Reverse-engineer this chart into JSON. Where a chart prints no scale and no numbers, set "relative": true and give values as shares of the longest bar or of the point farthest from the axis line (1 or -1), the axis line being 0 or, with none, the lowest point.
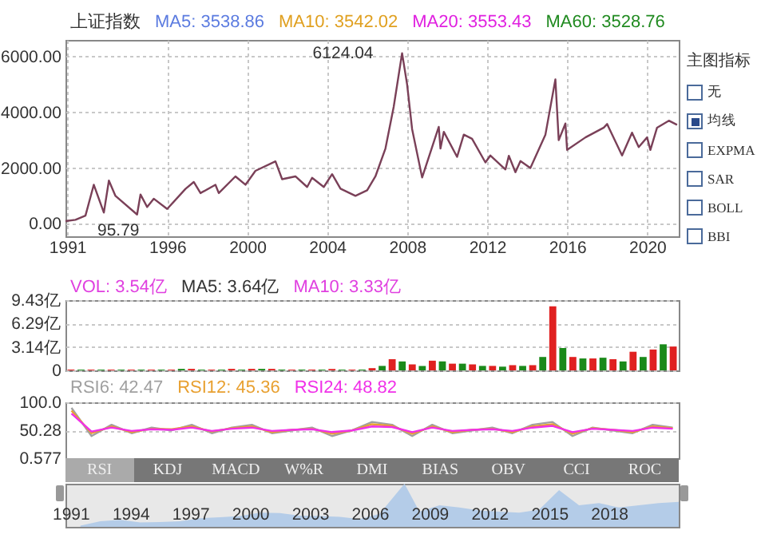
{
  "chart_data": [
    {
      "type": "line",
      "title": "上证指数",
      "annotations": [
        "MA5: 3538.86",
        "MA10: 3542.02",
        "MA20: 3553.43",
        "MA60: 3528.76",
        {
          "text": "6124.04",
          "x": "2007-10",
          "y": 6124.04
        },
        {
          "text": "95.79",
          "x": "1990-12",
          "y": 95.79
        }
      ],
      "x": [
        "1990-12",
        "1991-06",
        "1991-12",
        "1992-05",
        "1992-11",
        "1993-02",
        "1993-06",
        "1994-07",
        "1994-09",
        "1995-01",
        "1995-05",
        "1996-01",
        "1996-12",
        "1997-05",
        "1997-09",
        "1998-06",
        "1998-08",
        "1999-06",
        "1999-12",
        "2000-06",
        "2001-06",
        "2001-10",
        "2002-06",
        "2003-01",
        "2003-04",
        "2003-11",
        "2004-04",
        "2004-09",
        "2005-06",
        "2006-01",
        "2006-06",
        "2006-12",
        "2007-05",
        "2007-10",
        "2008-01",
        "2008-04",
        "2008-10",
        "2009-08",
        "2009-09",
        "2009-11",
        "2010-07",
        "2010-11",
        "2011-04",
        "2011-12",
        "2012-03",
        "2012-12",
        "2013-02",
        "2013-06",
        "2013-09",
        "2014-03",
        "2014-12",
        "2015-06",
        "2015-08",
        "2015-12",
        "2016-01",
        "2016-12",
        "2017-11",
        "2018-01",
        "2018-10",
        "2019-04",
        "2019-08",
        "2020-01",
        "2020-03",
        "2020-07",
        "2021-02",
        "2021-07"
      ],
      "series": [
        {
          "color": "#7a4058",
          "values": [
            95.79,
            140,
            290,
            1400,
            400,
            1550,
            1000,
            330,
            1050,
            600,
            900,
            530,
            1250,
            1500,
            1100,
            1400,
            1100,
            1700,
            1400,
            1900,
            2240,
            1600,
            1700,
            1320,
            1650,
            1320,
            1780,
            1260,
            1000,
            1200,
            1700,
            2700,
            4200,
            6124.04,
            5000,
            3400,
            1660,
            3480,
            2700,
            3300,
            2400,
            3200,
            3050,
            2200,
            2450,
            1950,
            2440,
            1850,
            2250,
            2000,
            3200,
            5180,
            3000,
            3600,
            2650,
            3100,
            3450,
            3580,
            2450,
            3270,
            2750,
            3100,
            2650,
            3450,
            3700,
            3550
          ]
        }
      ],
      "xlim": [
        "1990-12",
        "2021-08"
      ],
      "xticks": [
        "1991",
        "1996",
        "2000",
        "2004",
        "2008",
        "2012",
        "2016",
        "2020"
      ],
      "ylim": [
        -450,
        6600
      ],
      "yticks": [
        {
          "value": 0,
          "label": "0.00"
        },
        {
          "value": 2000,
          "label": "2000.00"
        },
        {
          "value": 4000,
          "label": "4000.00"
        },
        {
          "value": 6000,
          "label": "6000.00"
        }
      ],
      "grid": true
    },
    {
      "type": "bar",
      "annotations": [
        "VOL: 3.54亿",
        "MA5: 3.64亿",
        "MA10: 3.33亿"
      ],
      "categories": [
        null,
        null,
        null,
        null,
        null,
        null,
        null,
        null,
        null,
        null,
        null,
        null,
        null,
        null,
        null,
        null,
        null,
        null,
        null,
        null,
        null,
        null,
        null,
        null,
        null,
        null,
        null,
        null,
        null,
        null,
        null,
        null,
        null,
        null,
        null,
        null,
        null,
        null,
        null,
        null,
        null,
        null,
        null,
        null,
        null,
        null,
        null,
        null,
        null,
        null,
        null,
        null,
        null,
        null,
        null,
        null,
        null,
        null,
        null,
        null,
        null
      ],
      "values": [
        0.1,
        0.1,
        0.1,
        0.1,
        0.1,
        0.1,
        0.1,
        0.1,
        0.1,
        0.1,
        0.1,
        0.2,
        0.2,
        0.1,
        0.1,
        0.1,
        0.2,
        0.1,
        0.2,
        0.2,
        0.2,
        0.1,
        0.1,
        0.1,
        0.1,
        0.1,
        0.2,
        0.1,
        0.1,
        0.1,
        0.3,
        0.6,
        1.5,
        1.2,
        0.8,
        0.6,
        1.3,
        1.2,
        0.9,
        0.9,
        0.8,
        0.6,
        0.6,
        0.5,
        0.7,
        0.6,
        0.7,
        1.8,
        8.6,
        3.0,
        1.8,
        1.6,
        1.6,
        1.7,
        1.5,
        1.2,
        2.5,
        1.8,
        2.8,
        3.5,
        3.2
      ],
      "colors": [
        "#e02020",
        "#1a8a1a",
        "#e02020",
        "#1a8a1a",
        "#e02020",
        "#1a8a1a",
        "#e02020",
        "#1a8a1a",
        "#e02020",
        "#1a8a1a",
        "#e02020",
        "#1a8a1a",
        "#e02020",
        "#1a8a1a",
        "#e02020",
        "#1a8a1a",
        "#e02020",
        "#1a8a1a",
        "#e02020",
        "#1a8a1a",
        "#e02020",
        "#1a8a1a",
        "#e02020",
        "#1a8a1a",
        "#e02020",
        "#1a8a1a",
        "#e02020",
        "#1a8a1a",
        "#e02020",
        "#1a8a1a",
        "#e02020",
        "#1a8a1a",
        "#e02020",
        "#1a8a1a",
        "#e02020",
        "#1a8a1a",
        "#e02020",
        "#1a8a1a",
        "#e02020",
        "#1a8a1a",
        "#e02020",
        "#1a8a1a",
        "#e02020",
        "#1a8a1a",
        "#e02020",
        "#1a8a1a",
        "#e02020",
        "#1a8a1a",
        "#e02020",
        "#1a8a1a",
        "#e02020",
        "#1a8a1a",
        "#e02020",
        "#1a8a1a",
        "#e02020",
        "#1a8a1a",
        "#e02020",
        "#1a8a1a",
        "#e02020",
        "#1a8a1a",
        "#e02020"
      ],
      "ylim": [
        0,
        9.43
      ],
      "yticks": [
        {
          "value": 0,
          "label": "0"
        },
        {
          "value": 3.14,
          "label": "3.14亿"
        },
        {
          "value": 6.29,
          "label": "6.29亿"
        },
        {
          "value": 9.43,
          "label": "9.43亿"
        }
      ],
      "grid": "y",
      "tick_labels": "y"
    },
    {
      "type": "line",
      "categories": [
        null,
        null,
        null,
        null,
        null,
        null,
        null,
        null,
        null,
        null,
        null,
        null,
        null,
        null,
        null,
        null,
        null,
        null,
        null,
        null,
        null,
        null,
        null,
        null,
        null,
        null,
        null,
        null,
        null,
        null,
        null
      ],
      "series": [
        {
          "name": "RSI6: 42.47",
          "color": "#a0a0a0",
          "values": [
            90,
            40,
            60,
            45,
            55,
            50,
            60,
            45,
            55,
            60,
            45,
            50,
            55,
            40,
            50,
            65,
            60,
            40,
            60,
            45,
            50,
            55,
            45,
            60,
            65,
            40,
            55,
            50,
            45,
            60,
            55
          ]
        },
        {
          "name": "RSI12: 45.36",
          "color": "#e8a030",
          "values": [
            85,
            45,
            57,
            47,
            53,
            52,
            57,
            48,
            54,
            57,
            47,
            51,
            53,
            44,
            50,
            61,
            58,
            44,
            57,
            47,
            51,
            53,
            47,
            57,
            61,
            44,
            54,
            51,
            47,
            57,
            54
          ]
        },
        {
          "name": "RSI24: 48.82",
          "color": "#f030e8",
          "values": [
            80,
            48,
            55,
            49,
            52,
            51,
            55,
            49,
            53,
            55,
            49,
            51,
            52,
            47,
            50,
            57,
            56,
            47,
            55,
            49,
            51,
            52,
            49,
            55,
            58,
            47,
            53,
            51,
            49,
            55,
            53
          ]
        }
      ],
      "ylim": [
        0.577,
        100
      ],
      "yticks": [
        0.577,
        50.28,
        {
          "value": 100,
          "label": "100.0"
        }
      ],
      "grid": "y",
      "tick_labels": "y"
    },
    {
      "type": "area",
      "relative": true,
      "color": "#b4cce8",
      "x": [
        "1991-07",
        "1992-07",
        "1993-07",
        "1994-07",
        "1995-07",
        "1996-07",
        "1997-07",
        "1998-07",
        "1999-07",
        "2000-07",
        "2001-07",
        "2002-07",
        "2003-07",
        "2004-07",
        "2005-07",
        "2006-07",
        "2007-10",
        "2008-07",
        "2009-07",
        "2010-07",
        "2011-07",
        "2012-07",
        "2013-07",
        "2014-07",
        "2015-07",
        "2016-07",
        "2017-07",
        "2018-07",
        "2019-07",
        "2020-07",
        "2021-07"
      ],
      "values": [
        0.03,
        0.13,
        0.16,
        0.1,
        0.11,
        0.13,
        0.2,
        0.22,
        0.25,
        0.33,
        0.32,
        0.26,
        0.25,
        0.23,
        0.18,
        0.3,
        1,
        0.35,
        0.5,
        0.45,
        0.38,
        0.35,
        0.33,
        0.4,
        0.85,
        0.5,
        0.55,
        0.45,
        0.5,
        0.55,
        0.58
      ],
      "xlim": [
        "1990-10",
        "2021-07"
      ],
      "xticks": [
        "1991",
        "1994",
        "1997",
        "2000",
        "2003",
        "2006",
        "2009",
        "2012",
        "2015",
        "2018"
      ]
    },
    {
      "type": "other",
      "title": "主图指标",
      "annotations": [
        "无",
        "均线",
        "EXPMA",
        "SAR",
        "BOLL",
        "BBI"
      ]
    },
    {
      "type": "other",
      "annotations": [
        "RSI",
        "KDJ",
        "MACD",
        "W%R",
        "DMI",
        "BIAS",
        "OBV",
        "CCI",
        "ROC"
      ]
    }
  ]
}
